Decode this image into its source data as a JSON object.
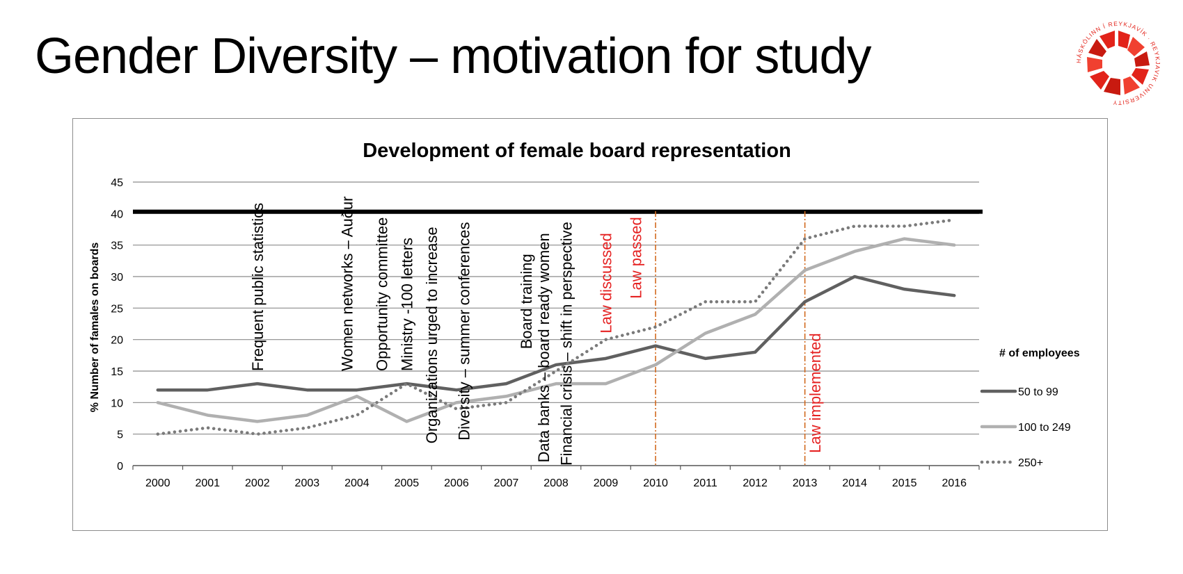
{
  "slide": {
    "title": "Gender Diversity – motivation for study"
  },
  "logo": {
    "name": "reykjavik-university-logo",
    "ring_text": "HÁSKÓLINN Í REYKJAVÍK · REYKJAVIK UNIVERSITY",
    "color": "#e2231a"
  },
  "chart_data": {
    "type": "line",
    "title": "Development of female board representation",
    "ylabel": "%  Number of famales on boards",
    "xlabel": "",
    "categories": [
      "2000",
      "2001",
      "2002",
      "2003",
      "2004",
      "2005",
      "2006",
      "2007",
      "2008",
      "2009",
      "2010",
      "2011",
      "2012",
      "2013",
      "2014",
      "2015",
      "2016"
    ],
    "ylim": [
      0,
      45
    ],
    "yticks": [
      0,
      5,
      10,
      15,
      20,
      25,
      30,
      35,
      40,
      45
    ],
    "grid": true,
    "legend_title": "# of employees",
    "legend_position": "right",
    "target_line": {
      "value": 40.3,
      "color": "#000000"
    },
    "series": [
      {
        "name": "50 to 99",
        "color": "#606060",
        "style": "solid",
        "values": [
          12,
          12,
          13,
          12,
          12,
          13,
          12,
          13,
          16,
          17,
          19,
          17,
          18,
          26,
          30,
          28,
          27
        ]
      },
      {
        "name": "100 to 249",
        "color": "#b0b0b0",
        "style": "solid",
        "values": [
          10,
          8,
          7,
          8,
          11,
          7,
          10,
          11,
          13,
          13,
          16,
          21,
          24,
          31,
          34,
          36,
          35
        ]
      },
      {
        "name": "250+",
        "color": "#7a7a7a",
        "style": "dotted",
        "values": [
          5,
          6,
          5,
          6,
          8,
          13,
          9,
          10,
          15,
          20,
          22,
          26,
          26,
          36,
          38,
          38,
          39
        ]
      }
    ],
    "vertical_markers": [
      {
        "year_index": 10,
        "color": "#d2691e"
      },
      {
        "year_index": 13,
        "color": "#d2691e"
      }
    ],
    "annotations": [
      {
        "text": "Frequent public statistics",
        "x": 2.0,
        "y_bottom": 15,
        "color": "#000000"
      },
      {
        "text": "Women networks – Auður",
        "x": 3.8,
        "y_bottom": 15,
        "color": "#000000"
      },
      {
        "text": "Opportunity committee",
        "x": 4.5,
        "y_bottom": 15,
        "color": "#000000"
      },
      {
        "text": "Ministry -100 letters",
        "x": 5.0,
        "y_bottom": 15,
        "color": "#000000"
      },
      {
        "text": "Organizations urged to increase",
        "x": 5.5,
        "y_bottom": 3.5,
        "color": "#000000"
      },
      {
        "text": "Diversity – summer conferences",
        "x": 6.15,
        "y_bottom": 4,
        "color": "#000000"
      },
      {
        "text": "Board training",
        "x": 7.4,
        "y_bottom": 18.5,
        "color": "#000000"
      },
      {
        "text": "Data banks – board ready women",
        "x": 7.75,
        "y_bottom": 0.5,
        "color": "#000000"
      },
      {
        "text": "Financial crisis – shift in perspective",
        "x": 8.2,
        "y_bottom": 0,
        "color": "#000000"
      },
      {
        "text": "Law discussed",
        "x": 9.0,
        "y_bottom": 21,
        "color": "#e52222"
      },
      {
        "text": "Law passed",
        "x": 9.6,
        "y_bottom": 26.5,
        "color": "#e52222"
      },
      {
        "text": "Law implemented",
        "x": 13.2,
        "y_bottom": 2,
        "color": "#e52222"
      }
    ]
  }
}
